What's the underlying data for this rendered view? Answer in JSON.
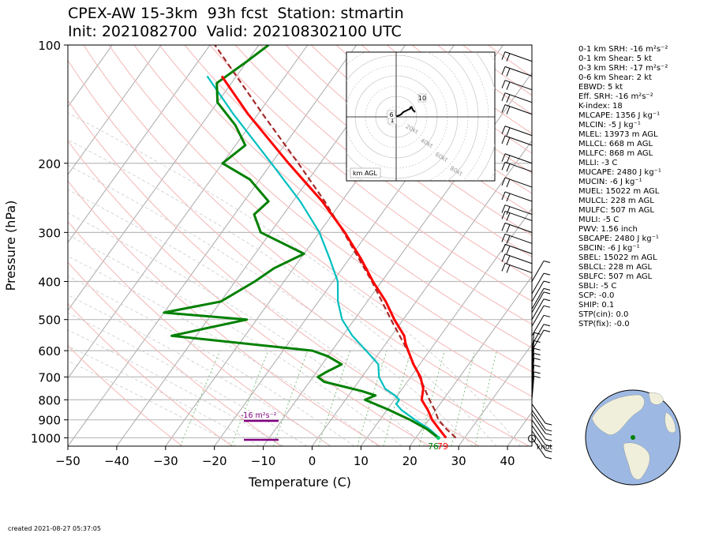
{
  "title": {
    "line1": "CPEX-AW 15-3km  93h fcst  Station: stmartin",
    "line2": "Init: 2021082700  Valid: 202108302100 UTC"
  },
  "chart_data": {
    "type": "skew-t",
    "xlabel": "Temperature (C)",
    "ylabel": "Pressure (hPa)",
    "xlim": [
      -50,
      45
    ],
    "ylim": [
      1050,
      100
    ],
    "x_ticks": [
      "−50",
      "−40",
      "−30",
      "−20",
      "−10",
      "0",
      "10",
      "20",
      "30",
      "40"
    ],
    "y_ticks": [
      "100",
      "200",
      "300",
      "400",
      "500",
      "600",
      "700",
      "800",
      "900",
      "1000"
    ],
    "y_tick_values": [
      100,
      200,
      300,
      400,
      500,
      600,
      700,
      800,
      900,
      1000
    ],
    "temperature_profile": {
      "color": "#ff0000",
      "p": [
        1000,
        950,
        900,
        850,
        800,
        750,
        700,
        650,
        600,
        575,
        550,
        500,
        450,
        400,
        350,
        300,
        250,
        200,
        150,
        120
      ],
      "t": [
        26.2,
        23.5,
        20.7,
        18.4,
        15.6,
        14.3,
        12.0,
        8.7,
        5.6,
        4.0,
        2.6,
        -1.8,
        -6.2,
        -11.8,
        -17.6,
        -24.8,
        -34.0,
        -46.5,
        -62.0,
        -73.0
      ]
    },
    "dewpoint_profile": {
      "color": "#008000",
      "p": [
        1000,
        950,
        900,
        850,
        800,
        780,
        760,
        720,
        700,
        680,
        650,
        620,
        600,
        550,
        530,
        500,
        480,
        450,
        400,
        370,
        340,
        300,
        270,
        250,
        220,
        200,
        180,
        160,
        140,
        125,
        110,
        100
      ],
      "t": [
        24.6,
        21.0,
        16.2,
        10.5,
        4.0,
        5.5,
        2.0,
        -7.0,
        -9.0,
        -8.0,
        -6.0,
        -10.0,
        -14.0,
        -45.0,
        -40.0,
        -32.0,
        -50.0,
        -40.0,
        -36.0,
        -34.0,
        -30.0,
        -42.0,
        -46.0,
        -45.0,
        -52.0,
        -60.0,
        -58.0,
        -63.0,
        -70.0,
        -73.0,
        -70.0,
        -68.0
      ]
    },
    "virtual_temp_profile": {
      "color": "#00bfbf",
      "p": [
        1000,
        950,
        900,
        850,
        820,
        800,
        780,
        750,
        700,
        650,
        600,
        550,
        500,
        450,
        400,
        350,
        300,
        250,
        200,
        150,
        120
      ],
      "t": [
        24.8,
        21.5,
        17.2,
        13.0,
        11.0,
        11.0,
        9.5,
        6.5,
        3.5,
        1.5,
        -3.0,
        -8.0,
        -12.5,
        -16.0,
        -19.0,
        -24.0,
        -30.0,
        -38.5,
        -50.0,
        -65.0,
        -76.0
      ]
    },
    "parcel_profile": {
      "color": "#a52a2a",
      "p": [
        1000,
        950,
        900,
        850,
        800,
        700,
        600,
        500,
        400,
        300,
        250,
        200,
        150,
        120,
        100
      ],
      "t": [
        28.2,
        25.0,
        22.0,
        19.8,
        17.2,
        11.8,
        5.5,
        -2.5,
        -12.0,
        -25.0,
        -33.5,
        -44.5,
        -59.0,
        -70.0,
        -79.0
      ]
    },
    "surface_labels": {
      "dewpoint": "76",
      "temperature": "79"
    },
    "srh_bar": {
      "label": "-16 m$^2$s$^{-2}$",
      "label_display": "-16 m²s⁻²",
      "color": "#800080"
    },
    "hodograph": {
      "ring_labels": [
        "20kt",
        "40kt",
        "60kt",
        "80kt"
      ],
      "height_labels": [
        "1",
        "6",
        "10"
      ],
      "corner_label": "km AGL",
      "u": [
        -1,
        -2,
        1,
        2,
        3,
        4,
        5,
        6,
        6,
        6.5,
        7,
        8
      ],
      "v": [
        -1,
        -0.5,
        0.5,
        1,
        2,
        2.5,
        3,
        3.5,
        4,
        4.2,
        3,
        2
      ]
    },
    "wind_barb_unit": "knot",
    "wind_barbs_pressures": [
      1000,
      960,
      930,
      900,
      870,
      850,
      820,
      800,
      780,
      750,
      720,
      700,
      680,
      650,
      620,
      600,
      580,
      550,
      520,
      500,
      480,
      470,
      450,
      430,
      400,
      380,
      360,
      340,
      320,
      300,
      280,
      270,
      250,
      230,
      210,
      200,
      180,
      170,
      150,
      140,
      130,
      120,
      110
    ],
    "grid": true
  },
  "params": [
    "0-1 km SRH: -16 m²s⁻²",
    "0-1 km Shear: 5 kt",
    "0-3 km SRH: -17 m²s⁻²",
    "0-6 km Shear: 2 kt",
    "EBWD: 5 kt",
    "Eff. SRH: -16 m²s⁻²",
    "K-index: 18",
    "MLCAPE: 1356 J kg⁻¹",
    "MLCIN: -5 J kg⁻¹",
    "MLEL: 13973 m AGL",
    "MLLCL: 668 m AGL",
    "MLLFC: 868 m AGL",
    "MLLI: -3 C",
    "MUCAPE: 2480 J kg⁻¹",
    "MUCIN: -6 J kg⁻¹",
    "MUEL: 15022 m AGL",
    "MULCL: 228 m AGL",
    "MULFC: 507 m AGL",
    "MULI: -5 C",
    "PWV: 1.56 inch",
    "SBCAPE: 2480 J kg⁻¹",
    "SBCIN: -6 J kg⁻¹",
    "SBEL: 15022 m AGL",
    "SBLCL: 228 m AGL",
    "SBLFC: 507 m AGL",
    "SBLI: -5 C",
    "SCP: -0.0",
    "SHIP: 0.1",
    "STP(cin): 0.0",
    "STP(fix): -0.0"
  ],
  "created": "created 2021-08-27 05:37:05",
  "colors": {
    "temperature": "#ff0000",
    "dewpoint": "#008000",
    "virtual": "#00bfbf",
    "parcel": "#a52a2a",
    "isotherm": "#aaaaaa",
    "dry_adiabat": "#f4b6b6",
    "moist_adiabat": "#cccccc",
    "mixing_ratio": "#7fbf7f",
    "ocean": "#9db9e3",
    "land": "#efefdc",
    "station": "#008000"
  },
  "globe": {
    "station_marker": "green-dot"
  }
}
